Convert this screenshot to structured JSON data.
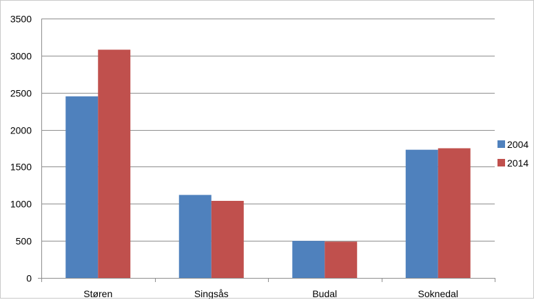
{
  "chart_data": {
    "type": "bar",
    "categories": [
      "Støren",
      "Singsås",
      "Budal",
      "Soknedal"
    ],
    "series": [
      {
        "name": "2004",
        "values": [
          2450,
          1120,
          500,
          1730
        ],
        "color": "#4f81bd"
      },
      {
        "name": "2014",
        "values": [
          3080,
          1040,
          490,
          1750
        ],
        "color": "#c0504d"
      }
    ],
    "ylim": [
      0,
      3500
    ],
    "yticks": [
      0,
      500,
      1000,
      1500,
      2000,
      2500,
      3000,
      3500
    ],
    "ytick_labels": [
      "0",
      "500",
      "1000",
      "1500",
      "2000",
      "2500",
      "3000",
      "3500"
    ],
    "grid": true,
    "legend_position": "right",
    "title": "",
    "xlabel": "",
    "ylabel": ""
  }
}
